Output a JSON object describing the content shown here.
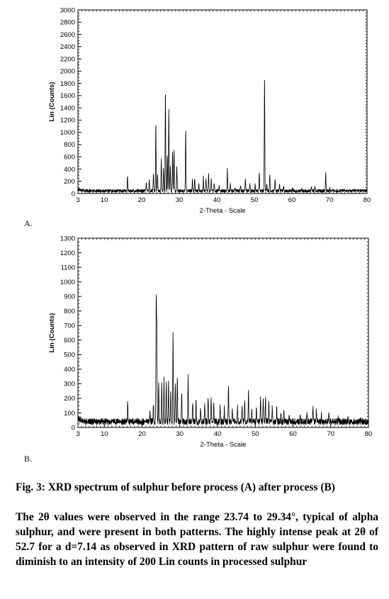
{
  "chart_data": [
    {
      "type": "line",
      "panel_label": "A.",
      "xlabel": "2-Theta - Scale",
      "ylabel": "Lin (Counts)",
      "xlim": [
        3,
        80
      ],
      "ylim": [
        0,
        3000
      ],
      "x_ticks": [
        3,
        10,
        20,
        30,
        40,
        50,
        60,
        70,
        80
      ],
      "y_ticks": [
        0,
        200,
        400,
        600,
        800,
        1000,
        1200,
        1400,
        1600,
        1800,
        2000,
        2200,
        2400,
        2600,
        2800,
        3000
      ],
      "series": [
        {
          "baseline": 45,
          "peaks": [
            [
              16.2,
              300
            ],
            [
              21.2,
              170
            ],
            [
              22.0,
              240
            ],
            [
              23.1,
              330
            ],
            [
              23.74,
              1150
            ],
            [
              24.2,
              300
            ],
            [
              25.2,
              560
            ],
            [
              25.8,
              420
            ],
            [
              26.3,
              1660
            ],
            [
              26.8,
              620
            ],
            [
              27.2,
              1380
            ],
            [
              27.6,
              440
            ],
            [
              28.2,
              680
            ],
            [
              28.6,
              700
            ],
            [
              29.34,
              440
            ],
            [
              31.7,
              1050
            ],
            [
              33.5,
              220
            ],
            [
              34.1,
              240
            ],
            [
              35.2,
              150
            ],
            [
              36.4,
              280
            ],
            [
              37.1,
              230
            ],
            [
              37.8,
              320
            ],
            [
              38.5,
              230
            ],
            [
              39.3,
              170
            ],
            [
              40.6,
              120
            ],
            [
              42.8,
              390
            ],
            [
              43.6,
              150
            ],
            [
              44.8,
              100
            ],
            [
              46.3,
              140
            ],
            [
              47.6,
              240
            ],
            [
              48.8,
              160
            ],
            [
              50.2,
              140
            ],
            [
              51.3,
              340
            ],
            [
              52.7,
              1920
            ],
            [
              53.3,
              160
            ],
            [
              54.1,
              300
            ],
            [
              55.5,
              230
            ],
            [
              56.7,
              150
            ],
            [
              57.8,
              120
            ],
            [
              60.2,
              90
            ],
            [
              62.6,
              80
            ],
            [
              65.2,
              110
            ],
            [
              66.1,
              110
            ],
            [
              69.0,
              320
            ],
            [
              70.1,
              90
            ],
            [
              74.1,
              70
            ],
            [
              76.6,
              60
            ]
          ]
        }
      ]
    },
    {
      "type": "line",
      "panel_label": "B.",
      "xlabel": "2-Theta - Scale",
      "ylabel": "Lin (Counts)",
      "xlim": [
        3,
        80
      ],
      "ylim": [
        0,
        1300
      ],
      "x_ticks": [
        3,
        10,
        20,
        30,
        40,
        50,
        60,
        70,
        80
      ],
      "y_ticks": [
        0,
        100,
        200,
        300,
        400,
        500,
        600,
        700,
        800,
        900,
        1000,
        1100,
        1200,
        1300
      ],
      "series": [
        {
          "baseline": 40,
          "peaks": [
            [
              16.2,
              180
            ],
            [
              22.1,
              100
            ],
            [
              23.0,
              170
            ],
            [
              23.74,
              880
            ],
            [
              23.9,
              660
            ],
            [
              24.4,
              310
            ],
            [
              25.2,
              290
            ],
            [
              25.8,
              330
            ],
            [
              26.4,
              310
            ],
            [
              27.0,
              300
            ],
            [
              27.6,
              260
            ],
            [
              28.2,
              660
            ],
            [
              28.8,
              300
            ],
            [
              29.34,
              350
            ],
            [
              30.5,
              230
            ],
            [
              32.2,
              350
            ],
            [
              33.4,
              180
            ],
            [
              34.3,
              200
            ],
            [
              35.5,
              150
            ],
            [
              36.6,
              180
            ],
            [
              37.5,
              220
            ],
            [
              38.3,
              210
            ],
            [
              39.0,
              170
            ],
            [
              40.7,
              140
            ],
            [
              41.8,
              130
            ],
            [
              42.9,
              300
            ],
            [
              43.9,
              140
            ],
            [
              45.3,
              150
            ],
            [
              46.5,
              140
            ],
            [
              47.2,
              180
            ],
            [
              48.2,
              250
            ],
            [
              49.1,
              120
            ],
            [
              50.3,
              130
            ],
            [
              51.4,
              200
            ],
            [
              52.1,
              190
            ],
            [
              52.7,
              200
            ],
            [
              53.6,
              170
            ],
            [
              54.5,
              150
            ],
            [
              55.7,
              130
            ],
            [
              56.8,
              110
            ],
            [
              57.6,
              120
            ],
            [
              59.0,
              90
            ],
            [
              61.9,
              80
            ],
            [
              63.7,
              90
            ],
            [
              65.3,
              130
            ],
            [
              66.2,
              120
            ],
            [
              67.5,
              100
            ],
            [
              69.5,
              90
            ],
            [
              72.0,
              70
            ],
            [
              74.6,
              70
            ],
            [
              78.0,
              50
            ]
          ]
        }
      ]
    }
  ],
  "caption": {
    "title": "Fig. 3: XRD spectrum of sulphur before process (A) after process (B)",
    "body": "The 2θ values were observed in the range 23.74 to 29.34°, typical of alpha sulphur, and were present in both patterns. The highly intense peak at 2θ of 52.7 for a d=7.14 as observed in XRD pattern of raw sulphur were found to diminish to an intensity of 200 Lin counts in processed sulphur"
  }
}
